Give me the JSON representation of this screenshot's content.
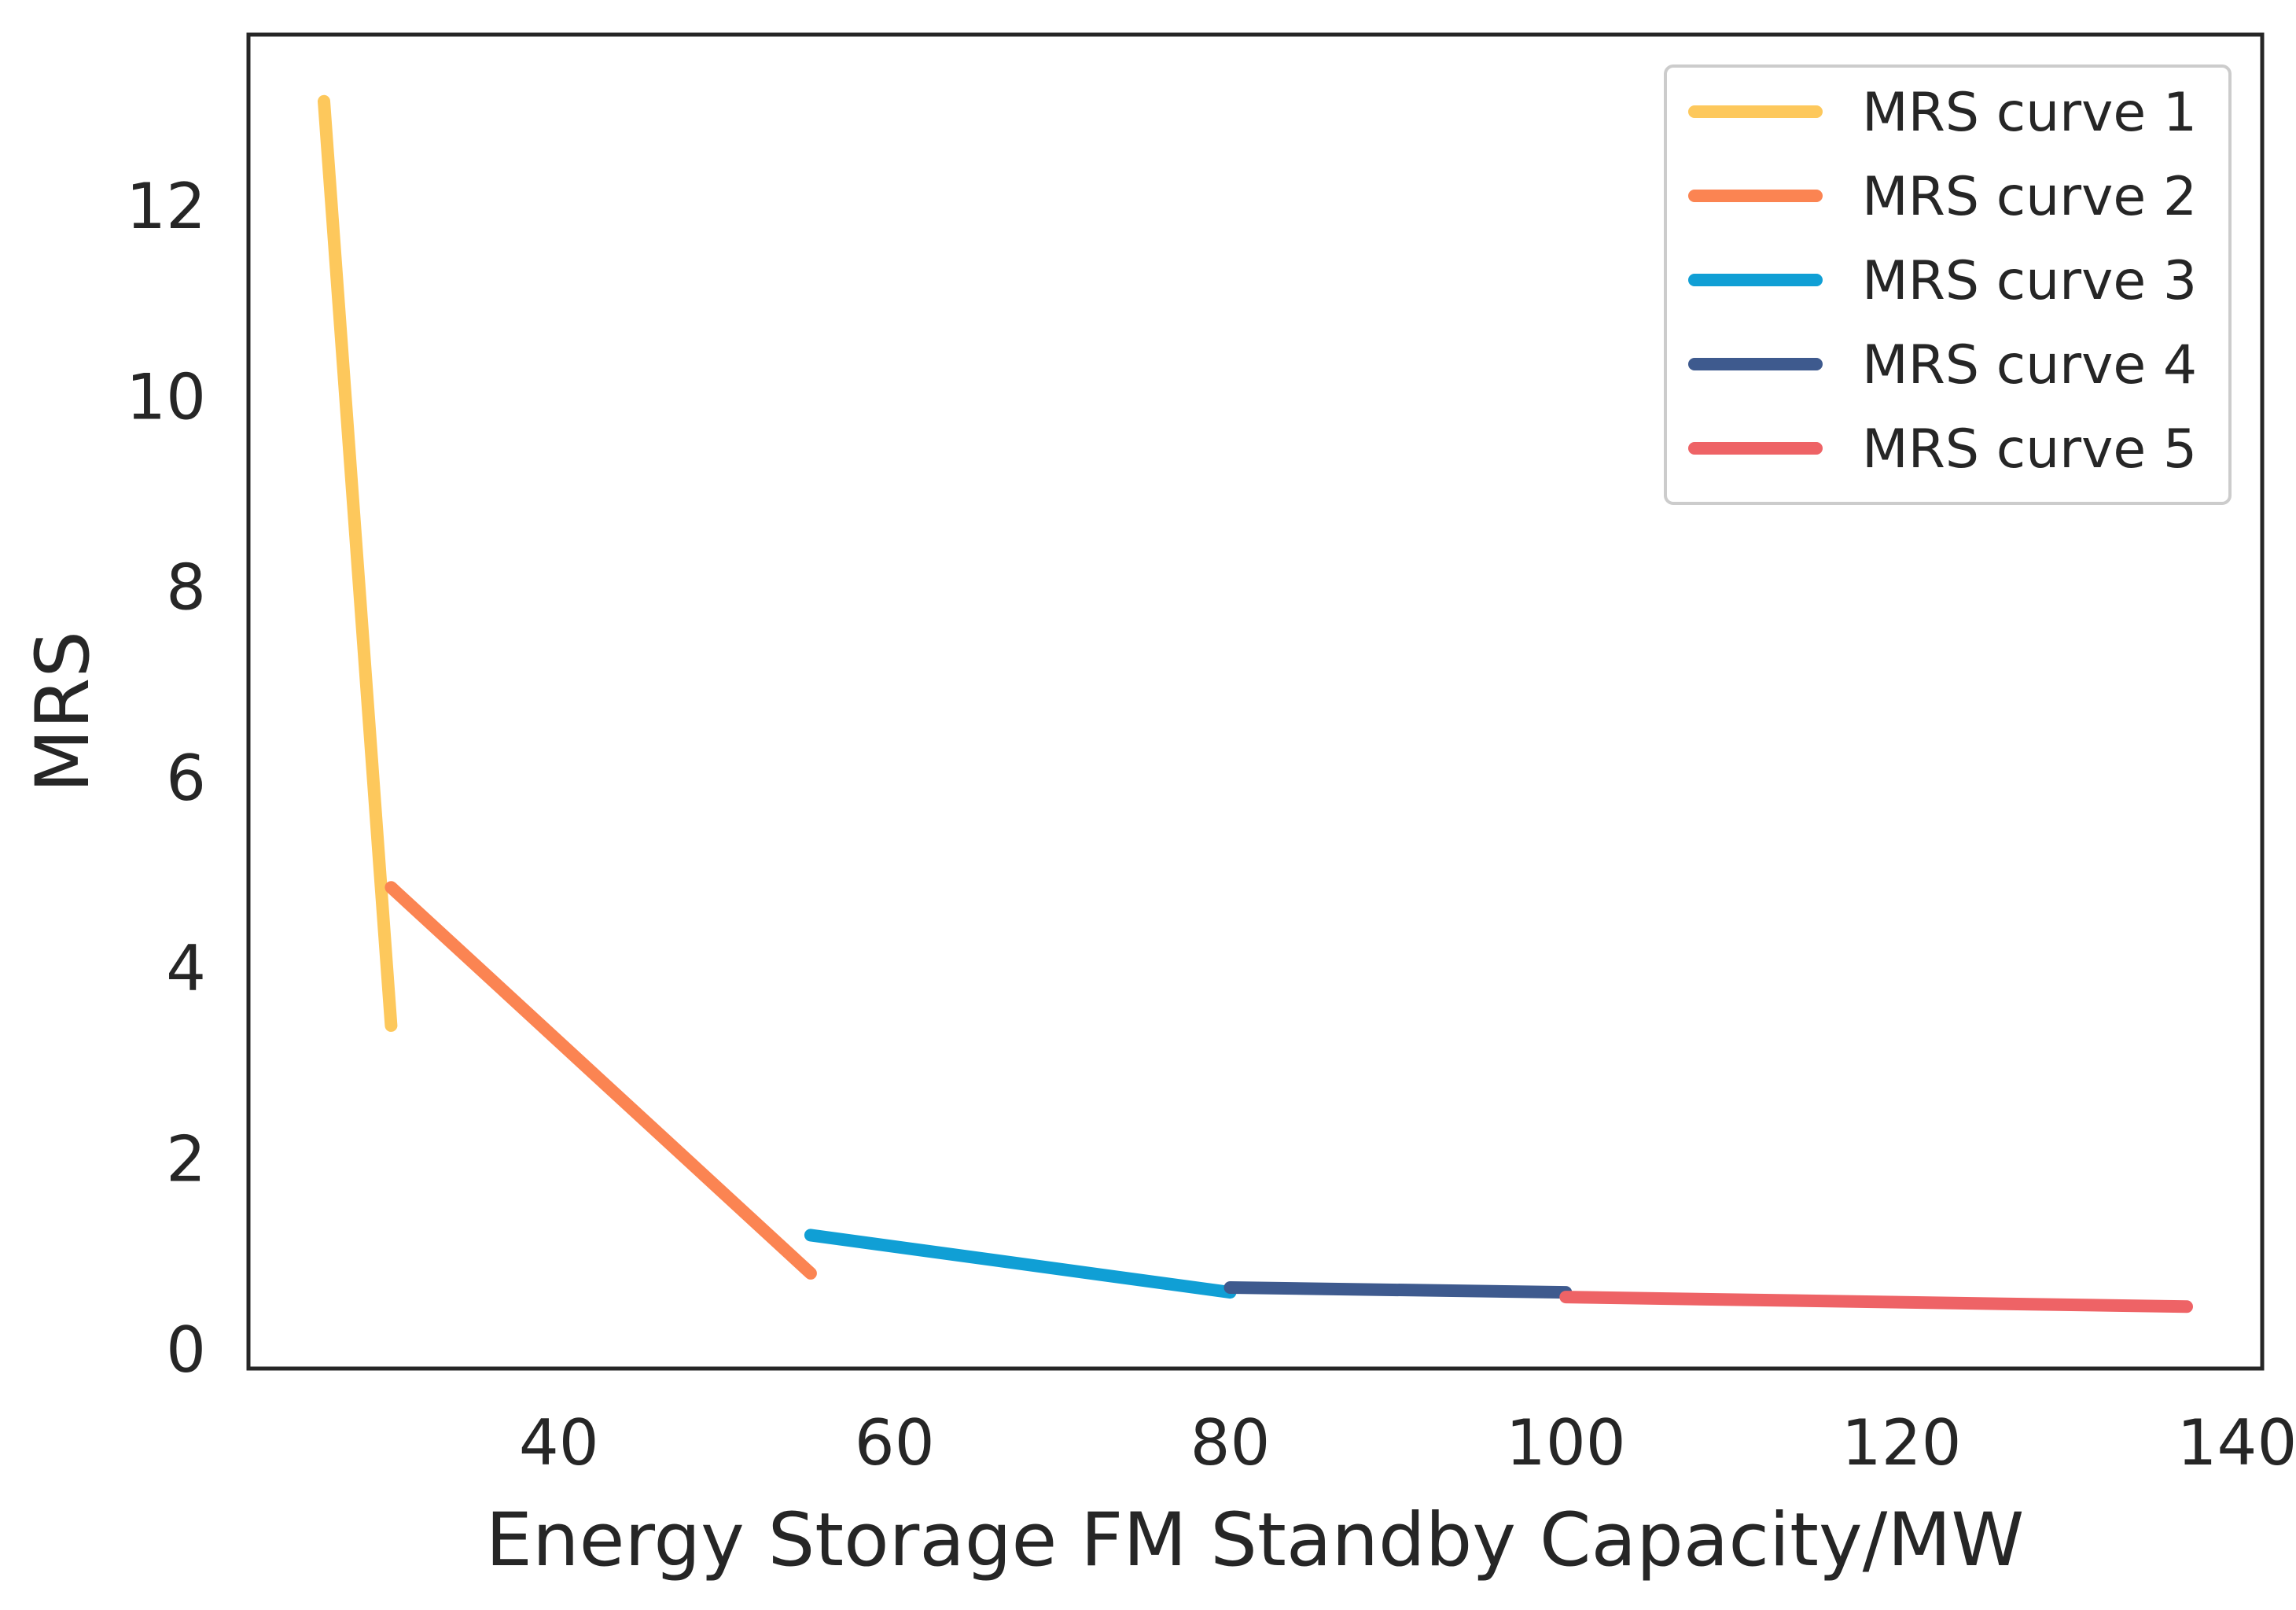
{
  "chart_data": {
    "type": "line",
    "title": "",
    "xlabel": "Energy Storage FM Standby Capacity/MW",
    "ylabel": "MRS",
    "xlim": [
      21.5,
      141.5
    ],
    "ylim": [
      -0.2,
      13.8
    ],
    "xticks": [
      40,
      60,
      80,
      100,
      120,
      140
    ],
    "yticks": [
      0,
      2,
      4,
      6,
      8,
      10,
      12
    ],
    "grid": false,
    "legend_position": "top-right",
    "series": [
      {
        "name": "MRS curve 1",
        "color": "#FDC85C",
        "x": [
          26,
          30
        ],
        "y": [
          13.1,
          3.4
        ]
      },
      {
        "name": "MRS curve 2",
        "color": "#FB8452",
        "x": [
          30,
          55
        ],
        "y": [
          4.85,
          0.8
        ]
      },
      {
        "name": "MRS curve 3",
        "color": "#109FD5",
        "x": [
          55,
          80
        ],
        "y": [
          1.2,
          0.6
        ]
      },
      {
        "name": "MRS curve 4",
        "color": "#3E5A8E",
        "x": [
          80,
          100
        ],
        "y": [
          0.65,
          0.6
        ]
      },
      {
        "name": "MRS curve 5",
        "color": "#EE6366",
        "x": [
          100,
          137
        ],
        "y": [
          0.55,
          0.45
        ]
      }
    ]
  }
}
